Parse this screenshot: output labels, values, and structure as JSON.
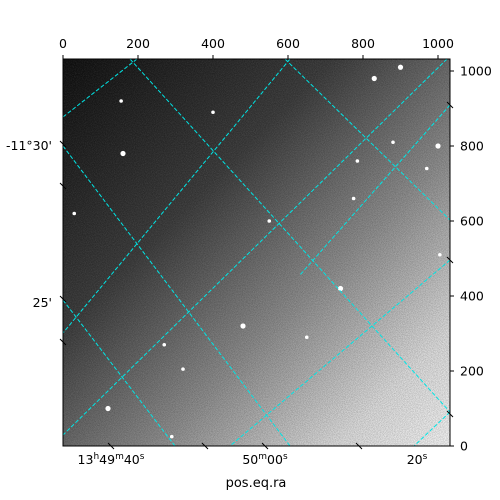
{
  "chart_data": {
    "type": "image",
    "image_kind": "astronomical-grayscale-sky-image-with-wcs-grid",
    "colormap": "grayscale (bright = white, sky background darker at top-left, lighter toward bottom-right)",
    "xlabel": "pos.eq.ra",
    "ylabel": "",
    "pixel_axes": {
      "top": {
        "ticks": [
          0,
          200,
          400,
          600,
          800,
          1000
        ],
        "range": [
          0,
          1032
        ]
      },
      "right": {
        "ticks": [
          0,
          200,
          400,
          600,
          800,
          1000
        ],
        "range": [
          0,
          1032
        ]
      }
    },
    "world_axes": {
      "bottom_ra": {
        "labels": [
          {
            "h": "13",
            "m": "49",
            "s": "40",
            "text": "13h49m40s"
          },
          {
            "m": "50",
            "s": "00",
            "text": "50m00s"
          },
          {
            "s": "20",
            "text": "20s"
          }
        ]
      },
      "left_dec": {
        "labels": [
          "-11°30'",
          "25'"
        ]
      }
    },
    "grid": {
      "on": true,
      "color": "#00e5e5",
      "style": "dashed"
    },
    "bright_sources_pixel": [
      [
        830,
        980
      ],
      [
        155,
        920
      ],
      [
        400,
        890
      ],
      [
        900,
        1010
      ],
      [
        880,
        810
      ],
      [
        785,
        760
      ],
      [
        1000,
        800
      ],
      [
        970,
        740
      ],
      [
        775,
        660
      ],
      [
        160,
        780
      ],
      [
        30,
        620
      ],
      [
        550,
        600
      ],
      [
        480,
        320
      ],
      [
        650,
        290
      ],
      [
        270,
        270
      ],
      [
        120,
        100
      ],
      [
        290,
        25
      ],
      [
        1005,
        510
      ],
      [
        740,
        420
      ],
      [
        320,
        205
      ]
    ]
  }
}
